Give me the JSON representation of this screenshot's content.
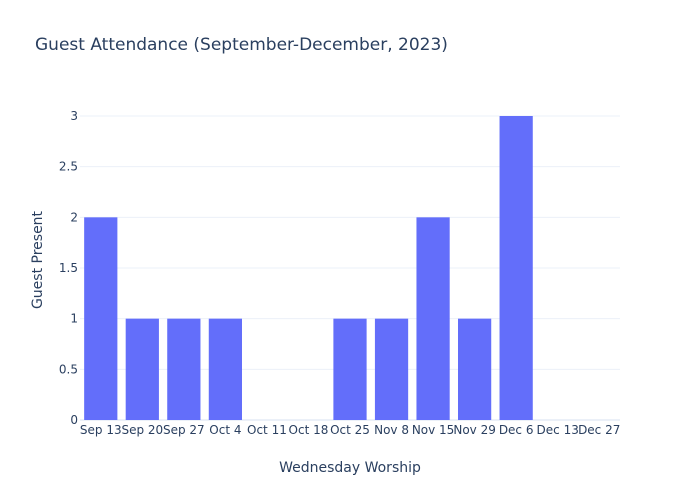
{
  "chart_data": {
    "type": "bar",
    "title": "Guest Attendance (September-December, 2023)",
    "xlabel": "Wednesday Worship",
    "ylabel": "Guest Present",
    "categories": [
      "Sep 13",
      "Sep 20",
      "Sep 27",
      "Oct 4",
      "Oct 11",
      "Oct 18",
      "Oct 25",
      "Nov 8",
      "Nov 15",
      "Nov 29",
      "Dec 6",
      "Dec 13",
      "Dec 27"
    ],
    "values": [
      2,
      1,
      1,
      1,
      0,
      0,
      1,
      1,
      2,
      1,
      3,
      0,
      0
    ],
    "ylim": [
      0,
      3
    ],
    "yticks": [
      "0",
      "0.5",
      "1",
      "1.5",
      "2",
      "2.5",
      "3"
    ],
    "bar_color": "#636efa",
    "grid": true,
    "legend": "none"
  }
}
